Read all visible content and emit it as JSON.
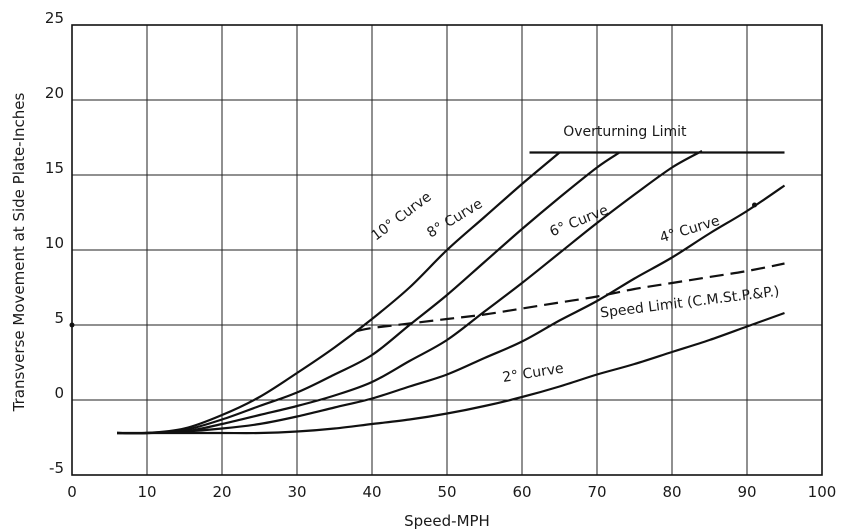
{
  "chart_data": {
    "type": "line",
    "xlabel": "Speed-MPH",
    "ylabel": "Transverse Movement at Side Plate-Inches",
    "xlim": [
      0,
      100
    ],
    "ylim": [
      -5,
      25
    ],
    "x_ticks": [
      "0",
      "10",
      "20",
      "30",
      "40",
      "50",
      "60",
      "70",
      "80",
      "90",
      "100"
    ],
    "y_ticks": [
      "25",
      "20",
      "15",
      "10",
      "5",
      "0",
      "-5"
    ],
    "grid": true,
    "series": [
      {
        "name": "10° Curve",
        "x": [
          6,
          10,
          15,
          20,
          25,
          30,
          35,
          40,
          45,
          50,
          55,
          60,
          65
        ],
        "y": [
          -2.2,
          -2.2,
          -1.9,
          -1.0,
          0.2,
          1.8,
          3.5,
          5.4,
          7.5,
          10.0,
          12.2,
          14.4,
          16.5
        ]
      },
      {
        "name": "8° Curve",
        "x": [
          6,
          10,
          15,
          20,
          25,
          30,
          35,
          40,
          45,
          50,
          55,
          60,
          65,
          70,
          73
        ],
        "y": [
          -2.2,
          -2.2,
          -2.0,
          -1.3,
          -0.4,
          0.5,
          1.7,
          3.0,
          5.0,
          7.0,
          9.2,
          11.4,
          13.5,
          15.5,
          16.5
        ]
      },
      {
        "name": "6° Curve",
        "x": [
          6,
          10,
          15,
          20,
          25,
          30,
          35,
          40,
          45,
          50,
          55,
          60,
          65,
          70,
          75,
          80,
          84
        ],
        "y": [
          -2.2,
          -2.2,
          -2.1,
          -1.6,
          -1.0,
          -0.4,
          0.3,
          1.2,
          2.6,
          4.0,
          5.9,
          7.8,
          9.8,
          11.8,
          13.7,
          15.5,
          16.6
        ]
      },
      {
        "name": "4° Curve",
        "x": [
          6,
          10,
          15,
          20,
          25,
          30,
          35,
          40,
          45,
          50,
          55,
          60,
          65,
          70,
          75,
          80,
          85,
          90,
          95
        ],
        "y": [
          -2.2,
          -2.2,
          -2.1,
          -1.9,
          -1.6,
          -1.1,
          -0.5,
          0.1,
          0.9,
          1.7,
          2.8,
          3.9,
          5.3,
          6.6,
          8.1,
          9.5,
          11.1,
          12.6,
          14.3
        ]
      },
      {
        "name": "2° Curve",
        "x": [
          6,
          10,
          15,
          20,
          25,
          30,
          35,
          40,
          45,
          50,
          55,
          60,
          65,
          70,
          75,
          80,
          85,
          90,
          95
        ],
        "y": [
          -2.2,
          -2.2,
          -2.2,
          -2.2,
          -2.2,
          -2.1,
          -1.9,
          -1.6,
          -1.3,
          -0.9,
          -0.4,
          0.2,
          0.9,
          1.7,
          2.4,
          3.2,
          4.0,
          4.9,
          5.8
        ]
      },
      {
        "name": "Speed Limit (C.M.St.P.&P.)",
        "style": "dashed",
        "x": [
          38,
          40,
          45,
          50,
          55,
          60,
          65,
          70,
          75,
          80,
          85,
          90,
          95
        ],
        "y": [
          4.6,
          4.8,
          5.1,
          5.4,
          5.7,
          6.1,
          6.5,
          6.9,
          7.4,
          7.8,
          8.2,
          8.6,
          9.1
        ]
      },
      {
        "name": "Overturning Limit",
        "x": [
          61,
          95
        ],
        "y": [
          16.5,
          16.5
        ]
      }
    ],
    "curve_labels": [
      {
        "text": "10° Curve",
        "x": 40.5,
        "y": 10.6,
        "angle": -37
      },
      {
        "text": "8° Curve",
        "x": 47.8,
        "y": 10.8,
        "angle": -31
      },
      {
        "text": "6° Curve",
        "x": 64.0,
        "y": 10.9,
        "angle": -22
      },
      {
        "text": "4° Curve",
        "x": 78.6,
        "y": 10.5,
        "angle": -17
      },
      {
        "text": "2° Curve",
        "x": 57.5,
        "y": 1.2,
        "angle": -9
      },
      {
        "text": "Speed Limit (C.M.St.P.&P.)",
        "x": 70.5,
        "y": 5.5,
        "angle": -7
      },
      {
        "text": "Overturning Limit",
        "x": 65.5,
        "y": 17.6,
        "angle": 0
      }
    ],
    "markers": [
      {
        "x": 0,
        "y": 5
      },
      {
        "x": 91,
        "y": 13
      }
    ]
  }
}
